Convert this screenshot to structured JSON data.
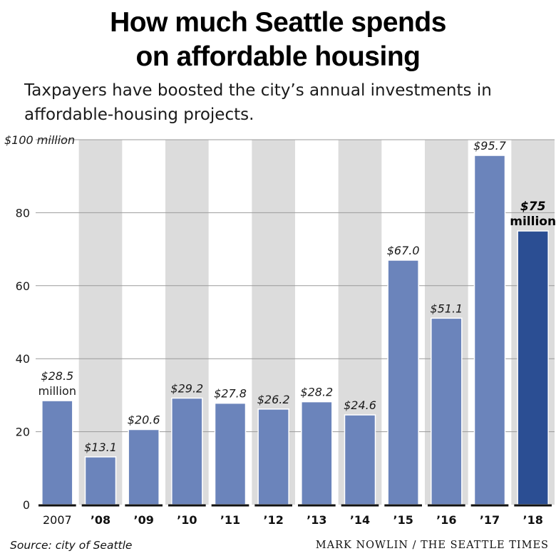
{
  "header": {
    "title_line1": "How much Seattle spends",
    "title_line2": "on affordable housing",
    "subtitle_line1": "Taxpayers have boosted the city’s annual investments in",
    "subtitle_line2": "affordable-housing projects."
  },
  "footer": {
    "source": "Source: city of Seattle",
    "credit": "MARK NOWLIN / THE SEATTLE TIMES"
  },
  "colors": {
    "bar": "#6b84bb",
    "highlight_bar": "#2b4e93",
    "band": "#dcdcdc",
    "gridline": "#9a9a9a",
    "axis": "#111111"
  },
  "chart_data": {
    "type": "bar",
    "title": "How much Seattle spends on affordable housing",
    "ylabel": "",
    "xlabel": "",
    "ylim": [
      0,
      100
    ],
    "y_ticks": [
      0,
      20,
      40,
      60,
      80,
      100
    ],
    "y_tick_labels": [
      "0",
      "20",
      "40",
      "60",
      "80",
      "$100 million"
    ],
    "grid": true,
    "categories": [
      "2007",
      "’08",
      "’09",
      "’10",
      "’11",
      "’12",
      "’13",
      "’14",
      "’15",
      "’16",
      "’17",
      "’18"
    ],
    "values": [
      28.5,
      13.1,
      20.6,
      29.2,
      27.8,
      26.2,
      28.2,
      24.6,
      67.0,
      51.1,
      95.7,
      75
    ],
    "value_labels": [
      [
        "$28.5",
        "million"
      ],
      [
        "$13.1"
      ],
      [
        "$20.6"
      ],
      [
        "$29.2"
      ],
      [
        "$27.8"
      ],
      [
        "$26.2"
      ],
      [
        "$28.2"
      ],
      [
        "$24.6"
      ],
      [
        "$67.0"
      ],
      [
        "$51.1"
      ],
      [
        "$95.7"
      ],
      [
        "$75",
        "million"
      ]
    ],
    "highlight_index": 11,
    "shaded_band_every_other": true
  }
}
